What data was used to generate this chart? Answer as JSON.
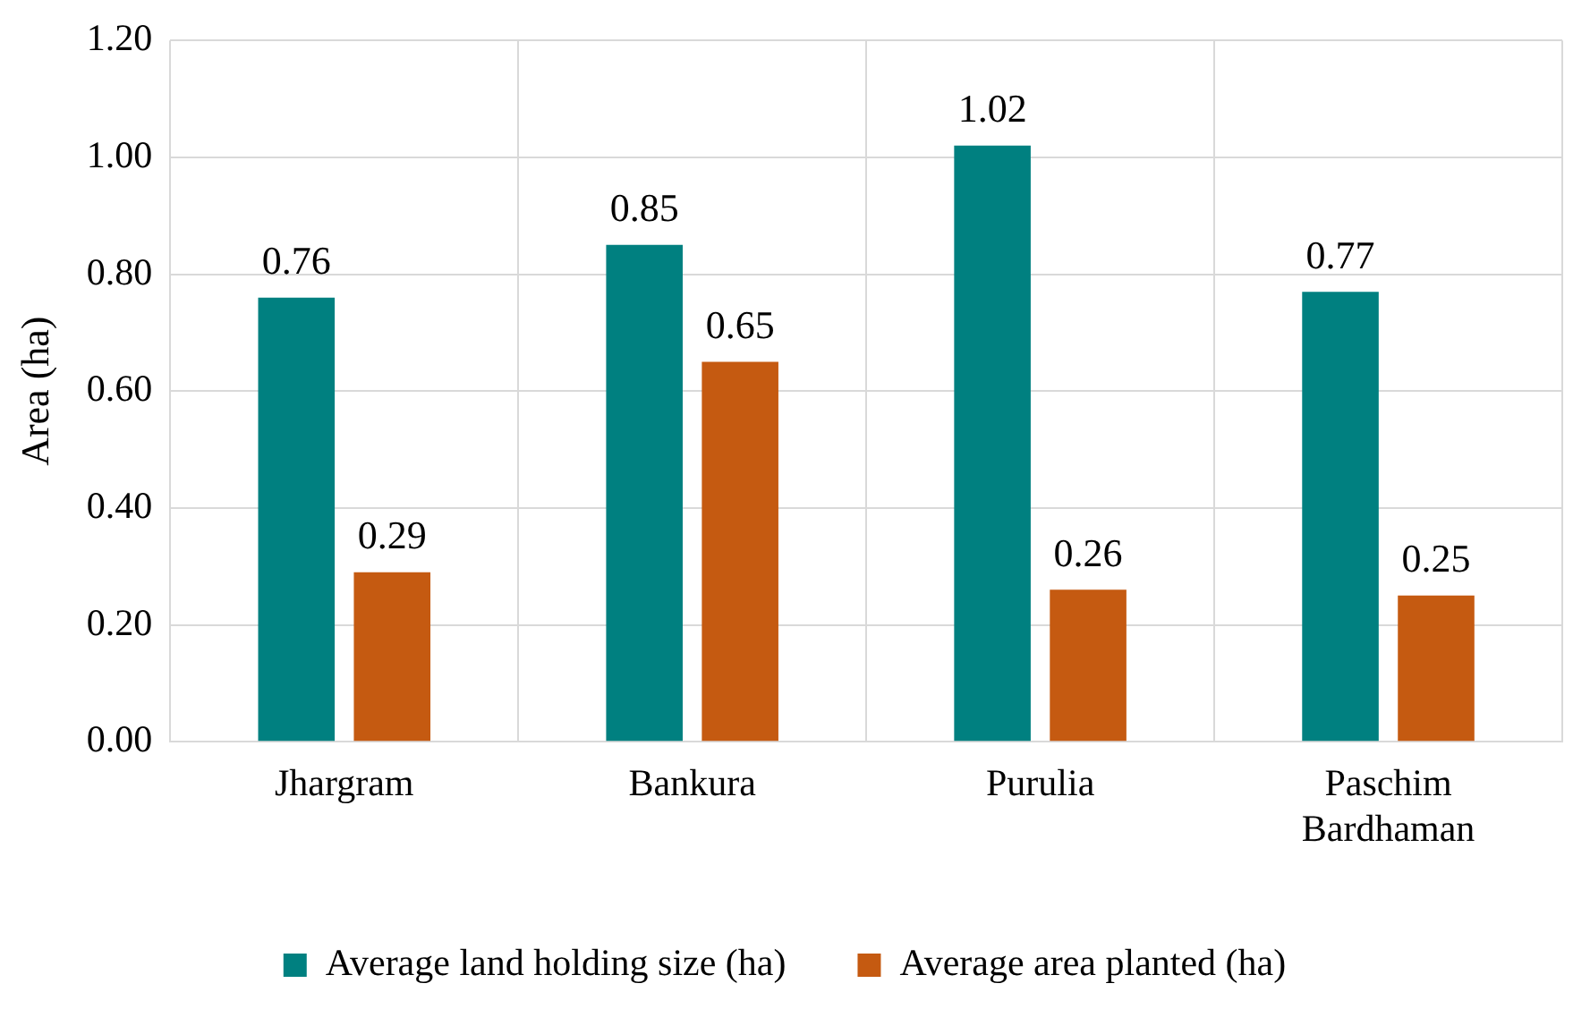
{
  "chart_data": {
    "type": "bar",
    "ylabel": "Area (ha)",
    "categories": [
      "Jhargram",
      "Bankura",
      "Purulia",
      "Paschim Bardhaman"
    ],
    "series": [
      {
        "name": "Average land holding size (ha)",
        "color": "#008080",
        "values": [
          0.76,
          0.85,
          1.02,
          0.77
        ]
      },
      {
        "name": "Average area planted (ha)",
        "color": "#c55a11",
        "values": [
          0.29,
          0.65,
          0.26,
          0.25
        ]
      }
    ],
    "ylim": [
      0,
      1.2
    ],
    "yticks": [
      {
        "value": 0,
        "label": "0.00"
      },
      {
        "value": 0.2,
        "label": "0.20"
      },
      {
        "value": 0.4,
        "label": "0.40"
      },
      {
        "value": 0.6,
        "label": "0.60"
      },
      {
        "value": 0.8,
        "label": "0.80"
      },
      {
        "value": 1,
        "label": "1.00"
      },
      {
        "value": 1.2,
        "label": "1.20"
      }
    ],
    "grid": true,
    "legend": "bottom",
    "data_labels": true
  }
}
